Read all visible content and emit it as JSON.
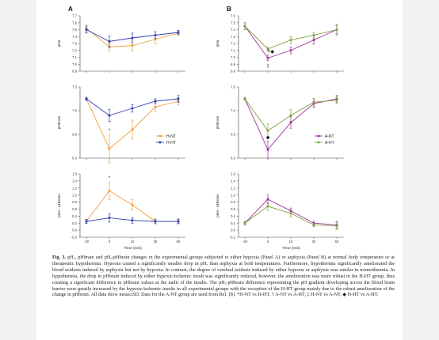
{
  "caption": {
    "label": "Fig. 3.",
    "text": "pHₐ, pHbrain and pHₐ-pHbrain changes in the experimental groups subjected to either hypoxia (Panel A) or asphyxia (Panel B) at normal body temperature or at therapeutic hypothermia. Hypoxia caused a significantly smaller drop in pHₐ than asphyxia at both temperatures. Furthermore, hypothermia significantly ameliorated the blood acidosis induced by asphyxia but not by hypoxia. In contrast, the degree of cerebral acidosis induced by either hypoxia or asphyxia was similar in normothermia. In hypothermia, the drop in pHbrain induced by either hypoxic/ischemic insult was significantly reduced, however, the amelioration was more robust in the H-HT group, thus creating a significant difference in pHbrain values at the nadir of the insults. The pHₐ-pHbrain difference representing the pH gradient developing across the blood brain barrier were greatly increased by the hypoxic/ischemic insults in all experimental groups with the exception of the H-HT group mainly due to the robust amelioration of the change in pHbrain. All data show mean±SD. Data for the A-NT group are used from Ref. [8]. *H-NT vs H-HT, † A-NT vs A-HT, ‡ H-NT vs A-NT, ◆ H-HT vs A-HT."
  },
  "chart_data": [
    {
      "type": "line",
      "panel": "A",
      "ylabel": "pHa",
      "ylim": [
        6.9,
        7.7
      ],
      "yticks": [
        "6.9",
        "7.0",
        "7.1",
        "7.2",
        "7.3",
        "7.4",
        "7.5",
        "7.6",
        "7.7"
      ],
      "x": [
        -20,
        0,
        10,
        30,
        60
      ],
      "series": [
        {
          "name": "H-NT",
          "color": "#f0a040",
          "values": [
            7.52,
            7.25,
            7.27,
            7.36,
            7.45
          ],
          "sd": [
            0.05,
            0.06,
            0.08,
            0.06,
            0.03
          ]
        },
        {
          "name": "H-HT",
          "color": "#3040b0",
          "values": [
            7.5,
            7.33,
            7.38,
            7.42,
            7.46
          ],
          "sd": [
            0.05,
            0.08,
            0.07,
            0.05,
            0.03
          ]
        }
      ],
      "annotations": []
    },
    {
      "type": "line",
      "panel": "A",
      "ylabel": "pHbrain",
      "ylim": [
        6.0,
        7.5
      ],
      "yticks": [
        "6.0",
        "6.5",
        "7.0",
        "7.5"
      ],
      "x": [
        -20,
        0,
        10,
        30,
        60
      ],
      "series": [
        {
          "name": "H-NT",
          "color": "#f0a040",
          "values": [
            7.25,
            6.2,
            6.6,
            7.08,
            7.2
          ],
          "sd": [
            0.03,
            0.3,
            0.2,
            0.1,
            0.08
          ]
        },
        {
          "name": "H-HT",
          "color": "#3040b0",
          "values": [
            7.25,
            6.9,
            7.05,
            7.2,
            7.25
          ],
          "sd": [
            0.03,
            0.13,
            0.08,
            0.05,
            0.07
          ]
        }
      ],
      "annotations": [
        {
          "x": 0,
          "text": "*"
        }
      ],
      "legend": {
        "position": "bottom-right",
        "entries": [
          "H-NT",
          "H-HT"
        ]
      }
    },
    {
      "type": "line",
      "panel": "A",
      "ylabel": "pHa - pHbrain",
      "xlabel": "Time (min)",
      "ylim": [
        -0.2,
        1.6
      ],
      "yticks": [
        "-0.2",
        "0.0",
        "0.2",
        "0.4",
        "0.6",
        "0.8",
        "1.0",
        "1.2",
        "1.4",
        "1.6"
      ],
      "xticks": [
        "-20",
        "0",
        "10",
        "30",
        "60"
      ],
      "x": [
        -20,
        0,
        10,
        30,
        60
      ],
      "series": [
        {
          "name": "H-NT",
          "color": "#f0a040",
          "values": [
            0.25,
            1.12,
            0.72,
            0.25,
            0.25
          ],
          "sd": [
            0.06,
            0.25,
            0.15,
            0.08,
            0.08
          ]
        },
        {
          "name": "H-HT",
          "color": "#3040b0",
          "values": [
            0.25,
            0.35,
            0.28,
            0.25,
            0.25
          ],
          "sd": [
            0.06,
            0.12,
            0.08,
            0.05,
            0.06
          ]
        }
      ],
      "annotations": [
        {
          "x": 0,
          "text": "*"
        }
      ]
    },
    {
      "type": "line",
      "panel": "B",
      "ylabel": "pHa",
      "ylim": [
        6.8,
        7.6
      ],
      "yticks": [
        "6.8",
        "6.9",
        "7.0",
        "7.1",
        "7.2",
        "7.3",
        "7.4",
        "7.5",
        "7.6"
      ],
      "x": [
        -20,
        0,
        10,
        30,
        60
      ],
      "series": [
        {
          "name": "A-NT",
          "color": "#a030a0",
          "values": [
            7.45,
            6.99,
            7.1,
            7.25,
            7.4
          ],
          "sd": [
            0.05,
            0.04,
            0.05,
            0.06,
            0.06
          ]
        },
        {
          "name": "A-HT",
          "color": "#80a040",
          "values": [
            7.45,
            7.12,
            7.25,
            7.32,
            7.4
          ],
          "sd": [
            0.05,
            0.03,
            0.05,
            0.04,
            0.08
          ]
        }
      ],
      "annotations": [
        {
          "x": 0,
          "text": "†◆"
        },
        {
          "x": 0,
          "text": "‡"
        }
      ]
    },
    {
      "type": "line",
      "panel": "B",
      "ylabel": "pHbrain",
      "ylim": [
        6.0,
        7.5
      ],
      "yticks": [
        "6.0",
        "6.5",
        "7.0",
        "7.5"
      ],
      "x": [
        -20,
        0,
        10,
        30,
        60
      ],
      "series": [
        {
          "name": "A-NT",
          "color": "#a030a0",
          "values": [
            7.25,
            6.18,
            6.75,
            7.15,
            7.25
          ],
          "sd": [
            0.03,
            0.18,
            0.12,
            0.08,
            0.07
          ]
        },
        {
          "name": "A-HT",
          "color": "#80a040",
          "values": [
            7.25,
            6.58,
            6.9,
            7.18,
            7.22
          ],
          "sd": [
            0.03,
            0.14,
            0.12,
            0.08,
            0.07
          ]
        }
      ],
      "annotations": [
        {
          "x": 0,
          "text": "◆"
        }
      ],
      "legend": {
        "position": "bottom-right",
        "entries": [
          "A-NT",
          "A-HT"
        ]
      }
    },
    {
      "type": "line",
      "panel": "B",
      "ylabel": "pHa - pHbrain",
      "xlabel": "Time (min)",
      "ylim": [
        -0.2,
        1.6
      ],
      "yticks": [
        "-0.2",
        "0.0",
        "0.2",
        "0.4",
        "0.6",
        "0.8",
        "1.0",
        "1.2",
        "1.4",
        "1.6"
      ],
      "xticks": [
        "-20",
        "0",
        "10",
        "30",
        "60"
      ],
      "x": [
        -20,
        0,
        10,
        30,
        60
      ],
      "series": [
        {
          "name": "A-NT",
          "color": "#a030a0",
          "values": [
            0.2,
            0.88,
            0.55,
            0.2,
            0.15
          ],
          "sd": [
            0.05,
            0.12,
            0.08,
            0.05,
            0.1
          ]
        },
        {
          "name": "A-HT",
          "color": "#80a040",
          "values": [
            0.2,
            0.68,
            0.48,
            0.15,
            0.12
          ],
          "sd": [
            0.05,
            0.12,
            0.1,
            0.05,
            0.1
          ]
        }
      ],
      "annotations": []
    }
  ]
}
